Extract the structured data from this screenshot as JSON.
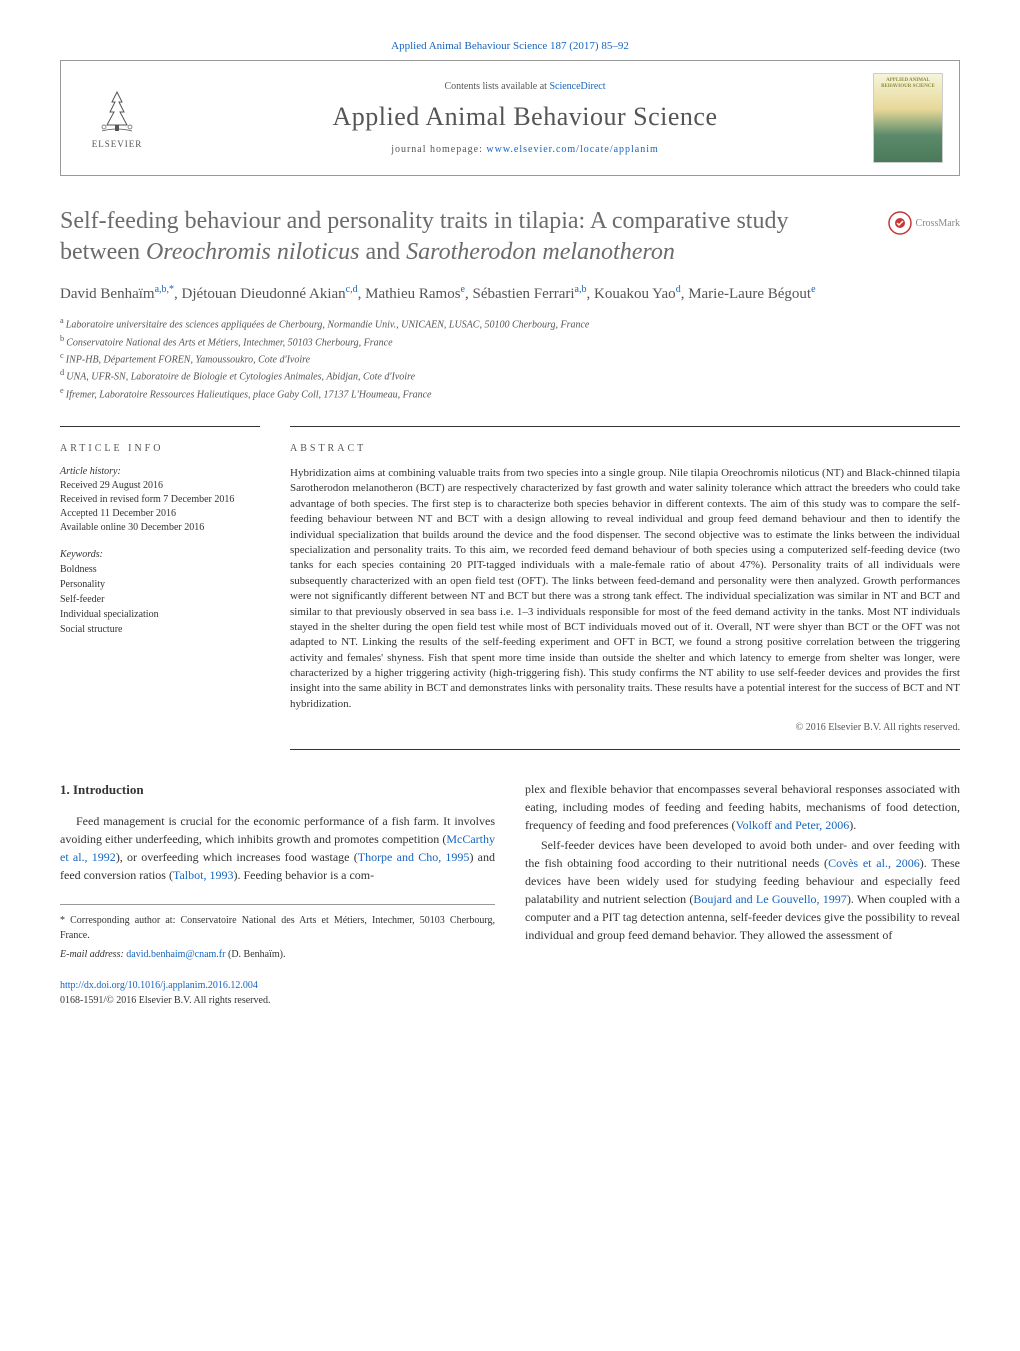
{
  "top_link": {
    "prefix": "Applied Animal Behaviour Science 187 (2017) 85–92",
    "url_text": "Applied Animal Behaviour Science 187 (2017) 85–92"
  },
  "header": {
    "elsevier_label": "ELSEVIER",
    "contents_prefix": "Contents lists available at ",
    "contents_link": "ScienceDirect",
    "journal_title": "Applied Animal Behaviour Science",
    "homepage_prefix": "journal homepage: ",
    "homepage_link": "www.elsevier.com/locate/applanim",
    "cover_title": "APPLIED ANIMAL BEHAVIOUR SCIENCE"
  },
  "crossmark": "CrossMark",
  "article": {
    "title_pre": "Self-feeding behaviour and personality traits in tilapia: A comparative study between ",
    "title_em1": "Oreochromis niloticus",
    "title_mid": " and ",
    "title_em2": "Sarotherodon melanotheron",
    "authors_html": "David Benhaïm<sup>a,b,*</sup>, Djétouan Dieudonné Akian<sup>c,d</sup>, Mathieu Ramos<sup>e</sup>, Sébastien Ferrari<sup>a,b</sup>, Kouakou Yao<sup>d</sup>, Marie-Laure Bégout<sup>e</sup>",
    "affiliations": [
      "a Laboratoire universitaire des sciences appliquées de Cherbourg, Normandie Univ., UNICAEN, LUSAC, 50100 Cherbourg, France",
      "b Conservatoire National des Arts et Métiers, Intechmer, 50103 Cherbourg, France",
      "c INP-HB, Département FOREN, Yamoussoukro, Cote d'Ivoire",
      "d UNA, UFR-SN, Laboratoire de Biologie et Cytologies Animales, Abidjan, Cote d'Ivoire",
      "e Ifremer, Laboratoire Ressources Halieutiques, place Gaby Coll, 17137 L'Houmeau, France"
    ]
  },
  "info": {
    "heading": "ARTICLE INFO",
    "history_label": "Article history:",
    "history": "Received 29 August 2016\nReceived in revised form 7 December 2016\nAccepted 11 December 2016\nAvailable online 30 December 2016",
    "keywords_label": "Keywords:",
    "keywords": [
      "Boldness",
      "Personality",
      "Self-feeder",
      "Individual specialization",
      "Social structure"
    ]
  },
  "abstract": {
    "heading": "ABSTRACT",
    "text": "Hybridization aims at combining valuable traits from two species into a single group. Nile tilapia Oreochromis niloticus (NT) and Black-chinned tilapia Sarotherodon melanotheron (BCT) are respectively characterized by fast growth and water salinity tolerance which attract the breeders who could take advantage of both species. The first step is to characterize both species behavior in different contexts. The aim of this study was to compare the self-feeding behaviour between NT and BCT with a design allowing to reveal individual and group feed demand behaviour and then to identify the individual specialization that builds around the device and the food dispenser. The second objective was to estimate the links between the individual specialization and personality traits. To this aim, we recorded feed demand behaviour of both species using a computerized self-feeding device (two tanks for each species containing 20 PIT-tagged individuals with a male-female ratio of about 47%). Personality traits of all individuals were subsequently characterized with an open field test (OFT). The links between feed-demand and personality were then analyzed. Growth performances were not significantly different between NT and BCT but there was a strong tank effect. The individual specialization was similar in NT and BCT and similar to that previously observed in sea bass i.e. 1–3 individuals responsible for most of the feed demand activity in the tanks. Most NT individuals stayed in the shelter during the open field test while most of BCT individuals moved out of it. Overall, NT were shyer than BCT or the OFT was not adapted to NT. Linking the results of the self-feeding experiment and OFT in BCT, we found a strong positive correlation between the triggering activity and females' shyness. Fish that spent more time inside than outside the shelter and which latency to emerge from shelter was longer, were characterized by a higher triggering activity (high-triggering fish). This study confirms the NT ability to use self-feeder devices and provides the first insight into the same ability in BCT and demonstrates links with personality traits. These results have a potential interest for the success of BCT and NT hybridization.",
    "copyright": "© 2016 Elsevier B.V. All rights reserved."
  },
  "body": {
    "section_number": "1.",
    "section_title": "Introduction",
    "para1_a": "Feed management is crucial for the economic performance of a fish farm. It involves avoiding either underfeeding, which inhibits growth and promotes competition (",
    "ref1": "McCarthy et al., 1992",
    "para1_b": "), or overfeeding which increases food wastage (",
    "ref2": "Thorpe and Cho, 1995",
    "para1_c": ") and feed conversion ratios (",
    "ref3": "Talbot, 1993",
    "para1_d": "). Feeding behavior is a com-",
    "para2_a": "plex and flexible behavior that encompasses several behavioral responses associated with eating, including modes of feeding and feeding habits, mechanisms of food detection, frequency of feeding and food preferences (",
    "ref4": "Volkoff and Peter, 2006",
    "para2_b": ").",
    "para3_a": "Self-feeder devices have been developed to avoid both under- and over feeding with the fish obtaining food according to their nutritional needs (",
    "ref5": "Covès et al., 2006",
    "para3_b": "). These devices have been widely used for studying feeding behaviour and especially feed palatability and nutrient selection (",
    "ref6": "Boujard and Le Gouvello, 1997",
    "para3_c": "). When coupled with a computer and a PIT tag detection antenna, self-feeder devices give the possibility to reveal individual and group feed demand behavior. They allowed the assessment of",
    "corr_label": "* Corresponding author at: Conservatoire National des Arts et Métiers, Intechmer, 50103 Cherbourg, France.",
    "email_label": "E-mail address: ",
    "email": "david.benhaim@cnam.fr",
    "email_suffix": " (D. Benhaïm).",
    "doi": "http://dx.doi.org/10.1016/j.applanim.2016.12.004",
    "issn_line": "0168-1591/© 2016 Elsevier B.V. All rights reserved."
  },
  "colors": {
    "link": "#1565c0",
    "text": "#333333",
    "muted": "#555555",
    "border": "#999999"
  }
}
